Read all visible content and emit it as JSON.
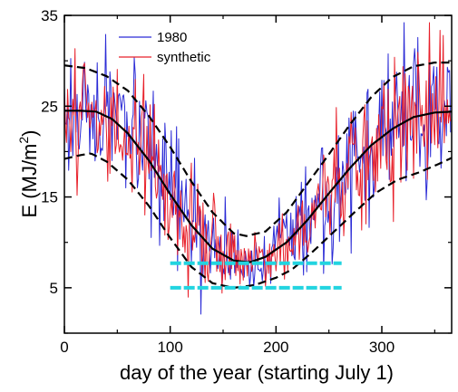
{
  "chart_data": {
    "type": "line",
    "title": "",
    "xlabel": "day of the year (starting July 1)",
    "ylabel": "E (MJ/m2)",
    "ylabel_parts": {
      "main": "E (MJ/m",
      "sup": "2",
      "close": ")"
    },
    "xlim": [
      0,
      366
    ],
    "ylim": [
      0,
      35
    ],
    "xticks": [
      0,
      100,
      200,
      300
    ],
    "yticks": [
      5,
      15,
      25,
      35
    ],
    "legend_position": "top-left",
    "series": [
      {
        "name": "1980",
        "color": "#2b2bd6",
        "style": "noisy-daily",
        "x_range": [
          0,
          365
        ],
        "y_values": "daily irradiance, oscillating between about 3 and 32 MJ/m2 around the mean curve"
      },
      {
        "name": "synthetic",
        "color": "#e8202a",
        "style": "noisy-daily",
        "x_range": [
          0,
          365
        ],
        "y_values": "daily irradiance, oscillating between about 2 and 33 MJ/m2 around the mean curve"
      }
    ],
    "mean_curve": {
      "color": "#000000",
      "style": "solid",
      "points": [
        [
          0,
          24.5
        ],
        [
          15,
          24.5
        ],
        [
          30,
          24.4
        ],
        [
          45,
          23.6
        ],
        [
          60,
          22.0
        ],
        [
          80,
          19.0
        ],
        [
          100,
          15.3
        ],
        [
          120,
          11.9
        ],
        [
          140,
          9.3
        ],
        [
          160,
          8.0
        ],
        [
          175,
          7.8
        ],
        [
          190,
          8.4
        ],
        [
          210,
          10.0
        ],
        [
          230,
          12.5
        ],
        [
          250,
          15.4
        ],
        [
          270,
          18.2
        ],
        [
          290,
          20.7
        ],
        [
          310,
          22.5
        ],
        [
          330,
          23.8
        ],
        [
          350,
          24.3
        ],
        [
          366,
          24.4
        ]
      ]
    },
    "upper_band": {
      "color": "#000000",
      "style": "dashed",
      "points": [
        [
          0,
          29.5
        ],
        [
          20,
          29.2
        ],
        [
          40,
          28.3
        ],
        [
          60,
          26.7
        ],
        [
          80,
          23.9
        ],
        [
          100,
          20.5
        ],
        [
          120,
          16.7
        ],
        [
          140,
          13.3
        ],
        [
          160,
          11.0
        ],
        [
          172,
          10.7
        ],
        [
          190,
          11.2
        ],
        [
          210,
          13.3
        ],
        [
          230,
          16.5
        ],
        [
          250,
          19.7
        ],
        [
          270,
          23.0
        ],
        [
          290,
          26.0
        ],
        [
          310,
          28.2
        ],
        [
          330,
          29.4
        ],
        [
          350,
          29.8
        ],
        [
          366,
          29.8
        ]
      ]
    },
    "lower_band": {
      "color": "#000000",
      "style": "dashed",
      "points": [
        [
          0,
          19.2
        ],
        [
          15,
          19.6
        ],
        [
          25,
          19.8
        ],
        [
          40,
          18.9
        ],
        [
          60,
          16.9
        ],
        [
          80,
          14.0
        ],
        [
          100,
          10.5
        ],
        [
          120,
          7.3
        ],
        [
          140,
          5.5
        ],
        [
          160,
          5.0
        ],
        [
          180,
          5.3
        ],
        [
          200,
          6.1
        ],
        [
          215,
          7.0
        ],
        [
          235,
          9.0
        ],
        [
          255,
          11.2
        ],
        [
          275,
          13.4
        ],
        [
          295,
          15.5
        ],
        [
          315,
          16.9
        ],
        [
          335,
          17.7
        ],
        [
          355,
          18.7
        ],
        [
          366,
          19.3
        ]
      ]
    },
    "horizontal_lines": [
      {
        "y": 7.7,
        "x_range": [
          100,
          262
        ],
        "color": "#22d4e0",
        "style": "dashed-thick"
      },
      {
        "y": 5.0,
        "x_range": [
          100,
          262
        ],
        "color": "#22d4e0",
        "style": "dashed-thick"
      }
    ]
  }
}
